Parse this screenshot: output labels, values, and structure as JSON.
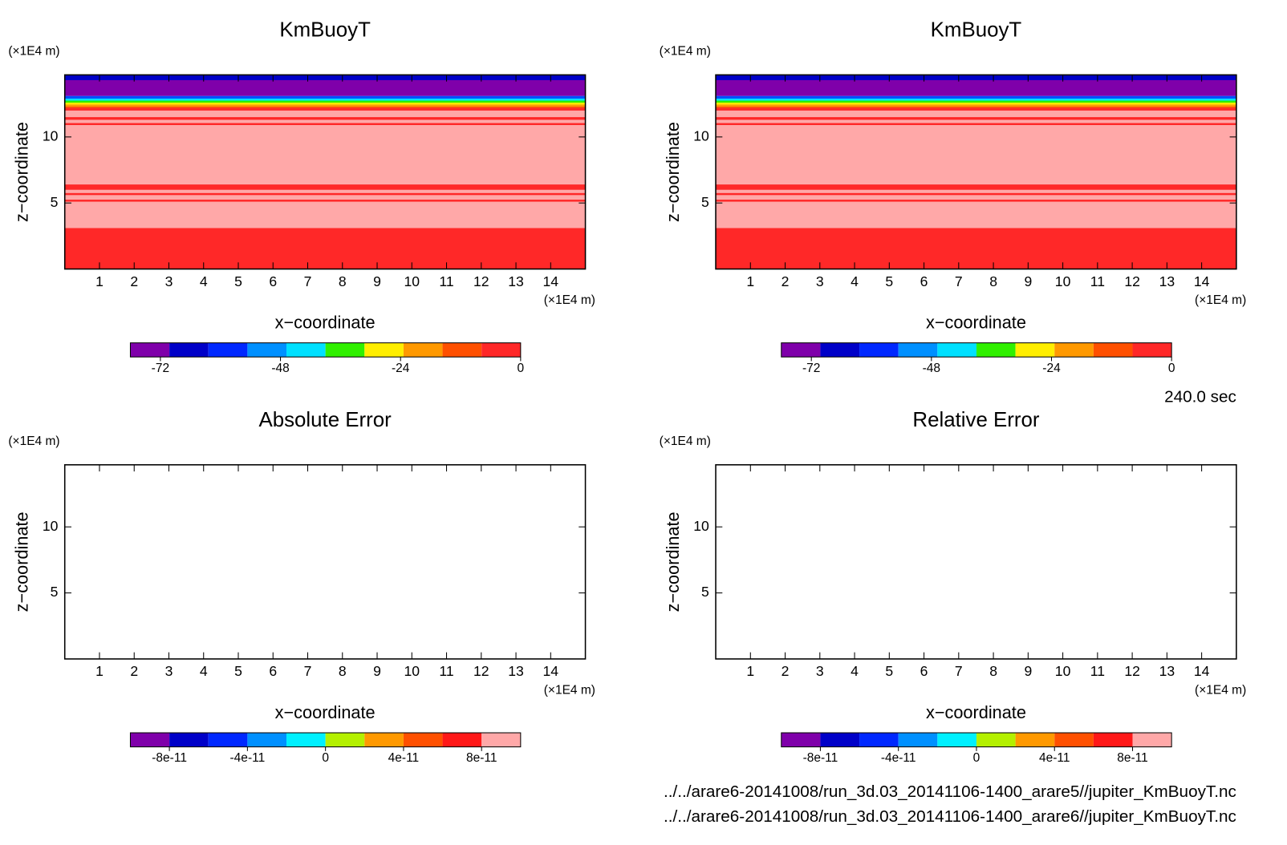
{
  "chart_data": [
    {
      "type": "contour",
      "title": "KmBuoyT",
      "xlabel": "x−coordinate",
      "ylabel": "z−coordinate",
      "x_unit": "(×1E4 m)",
      "y_unit": "(×1E4 m)",
      "xlim": [
        0,
        15
      ],
      "ylim": [
        0,
        14.7
      ],
      "xticks": [
        1,
        2,
        3,
        4,
        5,
        6,
        7,
        8,
        9,
        10,
        11,
        12,
        13,
        14
      ],
      "yticks": [
        5,
        10
      ],
      "bands": [
        {
          "zlim": [
            14.3,
            14.7
          ],
          "color": "#0000c8"
        },
        {
          "zlim": [
            13.1,
            14.3
          ],
          "color": "#7f00aa"
        },
        {
          "zlim": [
            12.9,
            13.1
          ],
          "color": "#0050ff"
        },
        {
          "zlim": [
            12.75,
            12.9
          ],
          "color": "#00e0ff"
        },
        {
          "zlim": [
            12.6,
            12.75
          ],
          "color": "#30f000"
        },
        {
          "zlim": [
            12.45,
            12.6
          ],
          "color": "#ffee00"
        },
        {
          "zlim": [
            12.3,
            12.45
          ],
          "color": "#ff9900"
        },
        {
          "zlim": [
            12.2,
            12.3
          ],
          "color": "#ff5000"
        },
        {
          "zlim": [
            0,
            12.2
          ],
          "color": "#ffa8a8"
        },
        {
          "zlim": [
            12.0,
            12.2
          ],
          "color": "#ff2828"
        },
        {
          "zlim": [
            11.3,
            11.5
          ],
          "color": "#ff2828"
        },
        {
          "zlim": [
            10.9,
            11.05
          ],
          "color": "#ff2828"
        },
        {
          "zlim": [
            6.0,
            6.4
          ],
          "color": "#ff2828"
        },
        {
          "zlim": [
            5.6,
            5.75
          ],
          "color": "#ff2828"
        },
        {
          "zlim": [
            5.1,
            5.25
          ],
          "color": "#ff2828"
        },
        {
          "zlim": [
            0,
            3.1
          ],
          "color": "#ff2828"
        }
      ],
      "colorbar": {
        "lim": [
          -78,
          0
        ],
        "colors": [
          "#7f00aa",
          "#0000c8",
          "#0028ff",
          "#0090ff",
          "#00e0ff",
          "#30f000",
          "#ffee00",
          "#ff9900",
          "#ff5000",
          "#ff2828"
        ],
        "ticks": [
          -72,
          -48,
          -24,
          0
        ]
      }
    },
    {
      "type": "contour",
      "title": "KmBuoyT",
      "xlabel": "x−coordinate",
      "ylabel": "z−coordinate",
      "x_unit": "(×1E4 m)",
      "y_unit": "(×1E4 m)",
      "xlim": [
        0,
        15
      ],
      "ylim": [
        0,
        14.7
      ],
      "xticks": [
        1,
        2,
        3,
        4,
        5,
        6,
        7,
        8,
        9,
        10,
        11,
        12,
        13,
        14
      ],
      "yticks": [
        5,
        10
      ],
      "bands": [
        {
          "zlim": [
            14.3,
            14.7
          ],
          "color": "#0000c8"
        },
        {
          "zlim": [
            13.1,
            14.3
          ],
          "color": "#7f00aa"
        },
        {
          "zlim": [
            12.9,
            13.1
          ],
          "color": "#0050ff"
        },
        {
          "zlim": [
            12.75,
            12.9
          ],
          "color": "#00e0ff"
        },
        {
          "zlim": [
            12.6,
            12.75
          ],
          "color": "#30f000"
        },
        {
          "zlim": [
            12.45,
            12.6
          ],
          "color": "#ffee00"
        },
        {
          "zlim": [
            12.3,
            12.45
          ],
          "color": "#ff9900"
        },
        {
          "zlim": [
            12.2,
            12.3
          ],
          "color": "#ff5000"
        },
        {
          "zlim": [
            0,
            12.2
          ],
          "color": "#ffa8a8"
        },
        {
          "zlim": [
            12.0,
            12.2
          ],
          "color": "#ff2828"
        },
        {
          "zlim": [
            11.3,
            11.5
          ],
          "color": "#ff2828"
        },
        {
          "zlim": [
            10.9,
            11.05
          ],
          "color": "#ff2828"
        },
        {
          "zlim": [
            6.0,
            6.4
          ],
          "color": "#ff2828"
        },
        {
          "zlim": [
            5.6,
            5.75
          ],
          "color": "#ff2828"
        },
        {
          "zlim": [
            5.1,
            5.25
          ],
          "color": "#ff2828"
        },
        {
          "zlim": [
            0,
            3.1
          ],
          "color": "#ff2828"
        }
      ],
      "colorbar": {
        "lim": [
          -78,
          0
        ],
        "colors": [
          "#7f00aa",
          "#0000c8",
          "#0028ff",
          "#0090ff",
          "#00e0ff",
          "#30f000",
          "#ffee00",
          "#ff9900",
          "#ff5000",
          "#ff2828"
        ],
        "ticks": [
          -72,
          -48,
          -24,
          0
        ]
      }
    },
    {
      "type": "contour",
      "title": "Absolute Error",
      "xlabel": "x−coordinate",
      "ylabel": "z−coordinate",
      "x_unit": "(×1E4 m)",
      "y_unit": "(×1E4 m)",
      "xlim": [
        0,
        15
      ],
      "ylim": [
        0,
        14.7
      ],
      "xticks": [
        1,
        2,
        3,
        4,
        5,
        6,
        7,
        8,
        9,
        10,
        11,
        12,
        13,
        14
      ],
      "yticks": [
        5,
        10
      ],
      "colorbar": {
        "lim": [
          -1e-10,
          1e-10
        ],
        "colors": [
          "#7f00aa",
          "#0000c8",
          "#0028ff",
          "#0090ff",
          "#00f0ff",
          "#b4f000",
          "#ff9900",
          "#ff5000",
          "#ff1818",
          "#ffa8a8"
        ],
        "ticks": [
          -8e-11,
          -4e-11,
          0,
          4e-11,
          8e-11
        ]
      }
    },
    {
      "type": "contour",
      "title": "Relative Error",
      "xlabel": "x−coordinate",
      "ylabel": "z−coordinate",
      "x_unit": "(×1E4 m)",
      "y_unit": "(×1E4 m)",
      "xlim": [
        0,
        15
      ],
      "ylim": [
        0,
        14.7
      ],
      "xticks": [
        1,
        2,
        3,
        4,
        5,
        6,
        7,
        8,
        9,
        10,
        11,
        12,
        13,
        14
      ],
      "yticks": [
        5,
        10
      ],
      "colorbar": {
        "lim": [
          -1e-10,
          1e-10
        ],
        "colors": [
          "#7f00aa",
          "#0000c8",
          "#0028ff",
          "#0090ff",
          "#00f0ff",
          "#b4f000",
          "#ff9900",
          "#ff5000",
          "#ff1818",
          "#ffa8a8"
        ],
        "ticks": [
          -8e-11,
          -4e-11,
          0,
          4e-11,
          8e-11
        ]
      }
    }
  ],
  "footer": {
    "time": "240.0 sec",
    "files": [
      "../../arare6-20141008/run_3d.03_20141106-1400_arare5//jupiter_KmBuoyT.nc",
      "../../arare6-20141008/run_3d.03_20141106-1400_arare6//jupiter_KmBuoyT.nc"
    ]
  }
}
